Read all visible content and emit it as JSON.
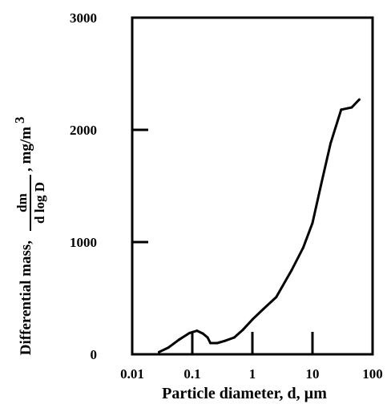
{
  "chart_data": {
    "type": "line",
    "xlabel": "Particle diameter, d, µm",
    "ylabel": {
      "prefix": "Differential mass,",
      "fraction_numerator": "dm",
      "fraction_denominator": "d log D",
      "unit": ", mg/m",
      "unit_superscript": "3"
    },
    "xscale": "log",
    "xlim": [
      0.01,
      100
    ],
    "ylim": [
      0,
      3000
    ],
    "x_ticks": [
      {
        "value": 0.01,
        "label": "0.01"
      },
      {
        "value": 0.1,
        "label": "0.1"
      },
      {
        "value": 1,
        "label": "1"
      },
      {
        "value": 10,
        "label": "10"
      },
      {
        "value": 100,
        "label": "100"
      }
    ],
    "y_ticks": [
      {
        "value": 0,
        "label": "0"
      },
      {
        "value": 1000,
        "label": "1000"
      },
      {
        "value": 2000,
        "label": "2000"
      },
      {
        "value": 3000,
        "label": "3000"
      }
    ],
    "grid": false,
    "series": [
      {
        "x": [
          0.028,
          0.04,
          0.06,
          0.09,
          0.12,
          0.15,
          0.18,
          0.2,
          0.26,
          0.35,
          0.5,
          0.7,
          1.0,
          1.5,
          2.5,
          4.5,
          7,
          10,
          14,
          20,
          30,
          45,
          60
        ],
        "values": [
          20,
          60,
          130,
          190,
          210,
          185,
          150,
          100,
          100,
          120,
          150,
          220,
          310,
          400,
          510,
          750,
          950,
          1170,
          1520,
          1880,
          2180,
          2200,
          2270
        ]
      }
    ]
  }
}
